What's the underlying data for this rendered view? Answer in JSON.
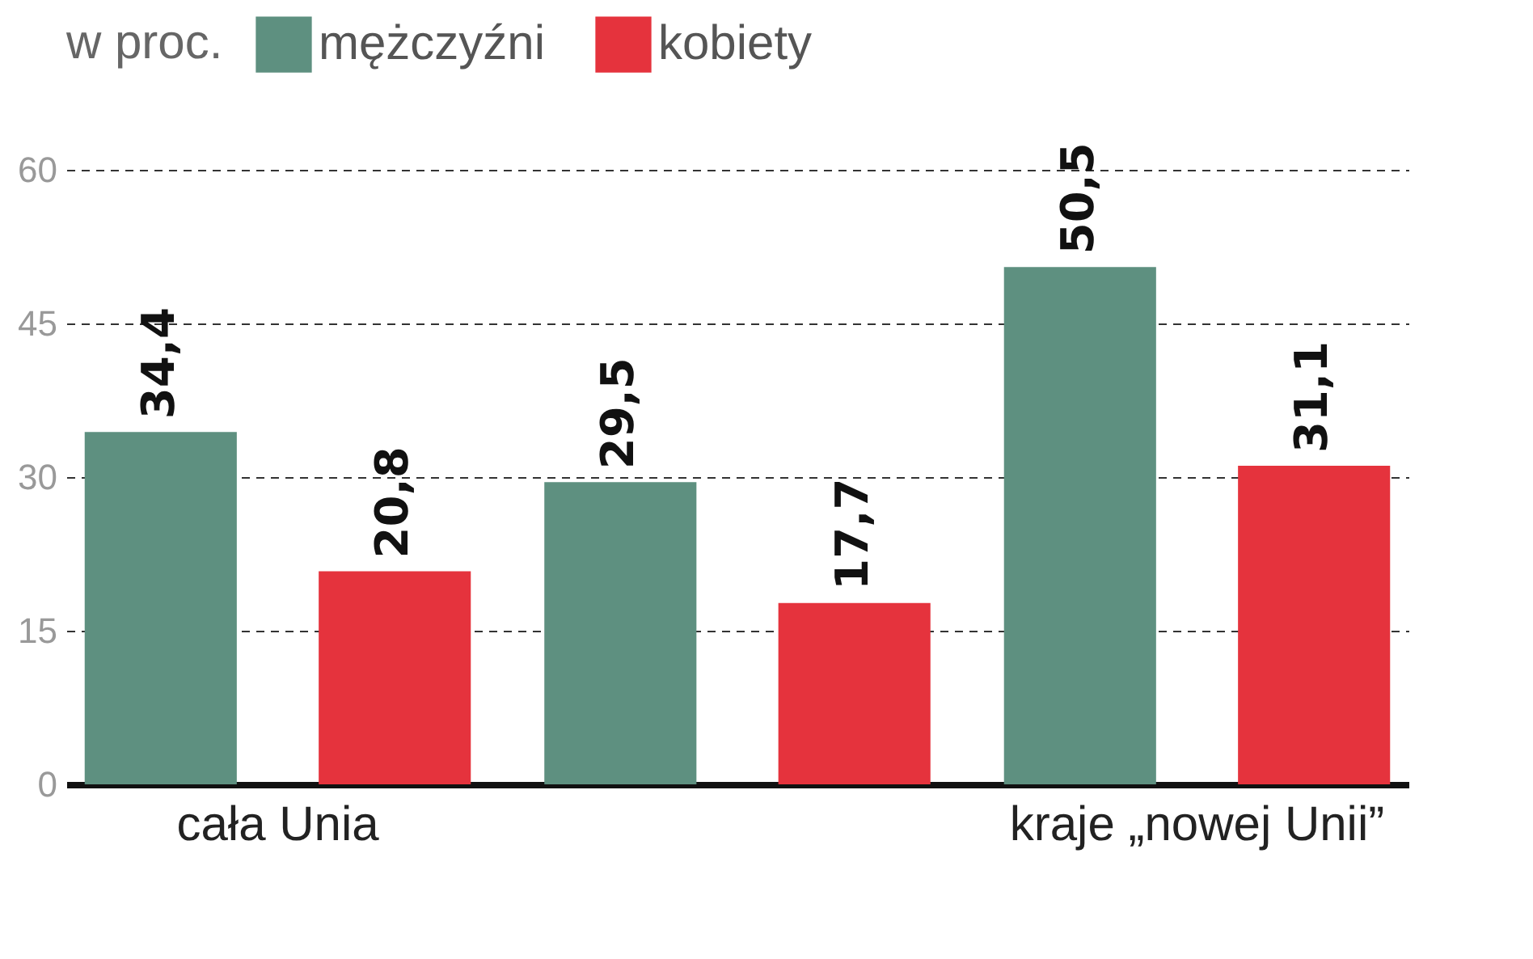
{
  "chart_data": {
    "type": "bar",
    "legend_title": "w proc.",
    "categories": [
      "cała Unia",
      null,
      "kraje „nowej Unii”"
    ],
    "series": [
      {
        "name": "mężczyźni",
        "color": "#5e9080",
        "values": [
          34.4,
          29.5,
          50.5
        ],
        "value_labels": [
          "34,4",
          "29,5",
          "50,5"
        ]
      },
      {
        "name": "kobiety",
        "color": "#e5333d",
        "values": [
          20.8,
          17.7,
          31.1
        ],
        "value_labels": [
          "20,8",
          "17,7",
          "31,1"
        ]
      }
    ],
    "ylim": [
      0,
      60
    ],
    "yticks": [
      0,
      15,
      30,
      45,
      60
    ],
    "grid": "y",
    "legend": "top left"
  }
}
